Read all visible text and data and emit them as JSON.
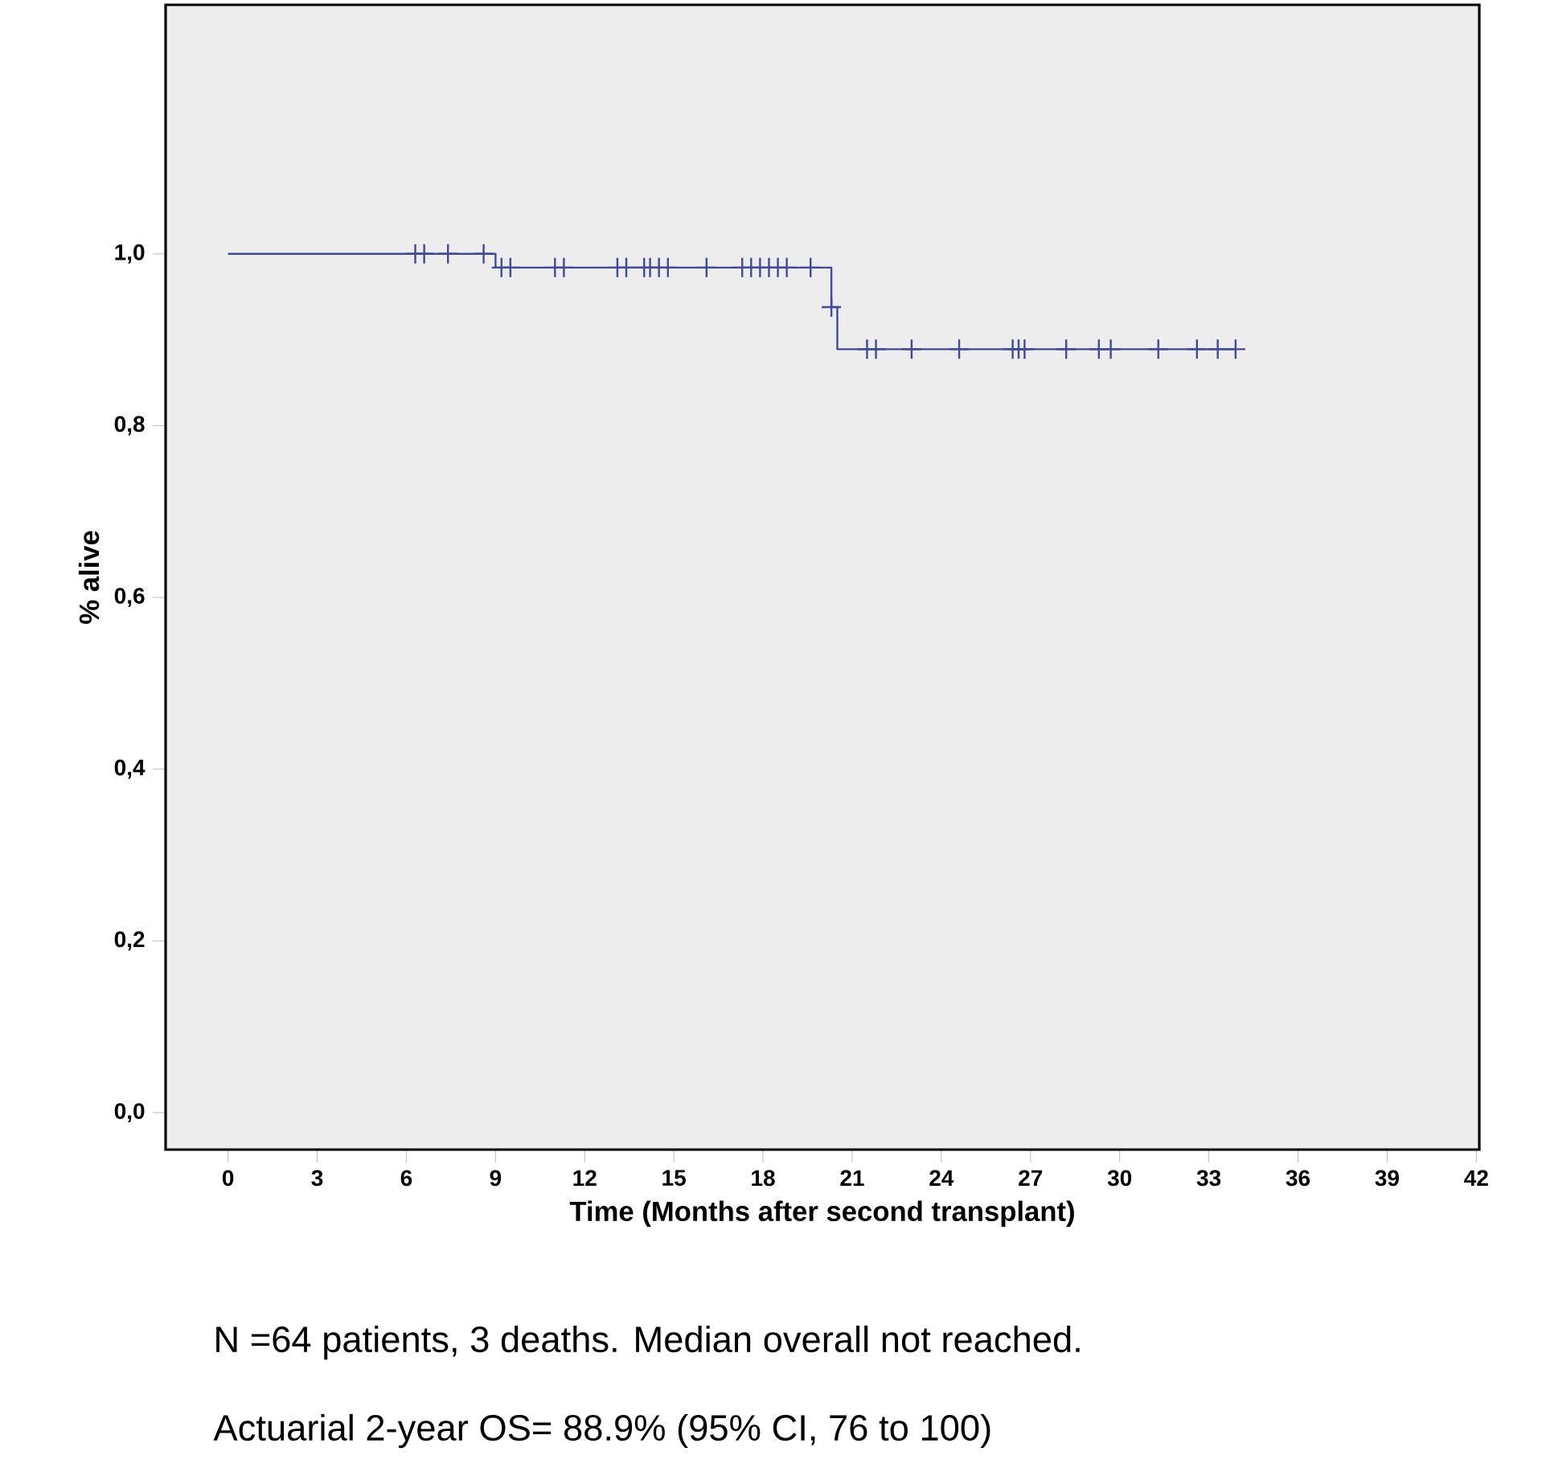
{
  "chart_data": {
    "type": "step",
    "xlabel": "Time (Months after second transplant)",
    "ylabel": "% alive",
    "xlim": [
      -2.1,
      42.1
    ],
    "ylim": [
      -0.043,
      1.29
    ],
    "xticks": [
      0,
      3,
      6,
      9,
      12,
      15,
      18,
      21,
      24,
      27,
      30,
      33,
      36,
      39,
      42
    ],
    "yticks": [
      {
        "value": 0,
        "label": "0,0"
      },
      {
        "value": 0.2,
        "label": "0,2"
      },
      {
        "value": 0.4,
        "label": "0,4"
      },
      {
        "value": 0.6,
        "label": "0,6"
      },
      {
        "value": 0.8,
        "label": "0,8"
      },
      {
        "value": 1.0,
        "label": "1,0"
      }
    ],
    "series": [
      {
        "color": "#3f4a9a",
        "x": [
          0,
          9.0,
          20.3,
          20.5,
          33.9
        ],
        "values": [
          1.0,
          0.984,
          0.938,
          0.889,
          0.889
        ],
        "marker": "none"
      },
      {
        "type": "scatter",
        "color": "#3f4a9a",
        "marker": "cross",
        "x": [
          6.3,
          6.6,
          7.4,
          8.6,
          9.2,
          9.5,
          11.0,
          11.3,
          13.1,
          13.4,
          14.0,
          14.2,
          14.5,
          14.8,
          16.1,
          17.3,
          17.6,
          17.9,
          18.2,
          18.5,
          18.8,
          19.6,
          20.3,
          21.5,
          21.8,
          23.0,
          24.6,
          26.4,
          26.6,
          26.8,
          28.2,
          29.3,
          29.7,
          31.3,
          32.6,
          33.3,
          33.9
        ],
        "values": [
          1.0,
          1.0,
          1.0,
          1.0,
          0.984,
          0.984,
          0.984,
          0.984,
          0.984,
          0.984,
          0.984,
          0.984,
          0.984,
          0.984,
          0.984,
          0.984,
          0.984,
          0.984,
          0.984,
          0.984,
          0.984,
          0.984,
          0.938,
          0.889,
          0.889,
          0.889,
          0.889,
          0.889,
          0.889,
          0.889,
          0.889,
          0.889,
          0.889,
          0.889,
          0.889,
          0.889,
          0.889
        ]
      }
    ],
    "annotations": [
      "N =64 patients, 3 deaths.  Median overall not reached.",
      "Actuarial 2-year OS= 88.9% (95% CI, 76 to 100)"
    ],
    "grid": false
  }
}
